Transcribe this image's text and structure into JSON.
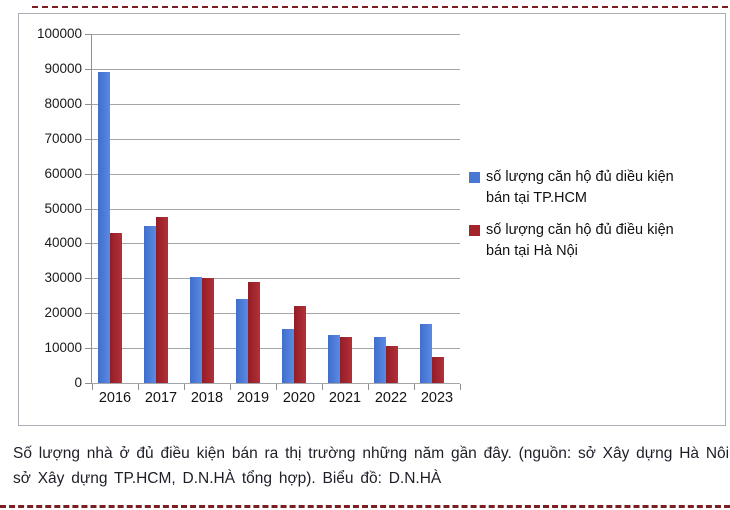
{
  "decor": {
    "dashed_line_color": "#7b1e22"
  },
  "chart_data": {
    "type": "bar",
    "categories": [
      "2016",
      "2017",
      "2018",
      "2019",
      "2020",
      "2021",
      "2022",
      "2023"
    ],
    "series": [
      {
        "name": "số lượng căn hộ đủ diều kiện bán tại TP.HCM",
        "color": "#4678d4",
        "values": [
          89000,
          45000,
          30500,
          24000,
          15500,
          13800,
          13300,
          17000
        ]
      },
      {
        "name": "số lượng căn hộ đủ điều kiện bán tại Hà Nội",
        "color": "#a2232a",
        "values": [
          43000,
          47500,
          30000,
          29000,
          22000,
          13300,
          10500,
          7500
        ]
      }
    ],
    "title": "",
    "xlabel": "",
    "ylabel": "",
    "ylim": [
      0,
      100000
    ],
    "ytick_step": 10000,
    "grid": true,
    "legend_position": "right",
    "legend": [
      {
        "color": "#4678d4",
        "lines": [
          "số lượng căn hộ đủ diều kiện",
          "bán tại TP.HCM"
        ]
      },
      {
        "color": "#a2232a",
        "lines": [
          "số lượng căn hộ đủ điều kiện",
          "bán tại Hà Nội"
        ]
      }
    ]
  },
  "caption": {
    "line1": "Số lượng nhà ở đủ điều kiện bán ra thị trường những năm gần đây. (nguồn: sở Xây dựng Hà Nôi,",
    "line2": "sở Xây dựng TP.HCM, D.N.HÀ tổng hợp).  Biểu đồ: D.N.HÀ"
  }
}
